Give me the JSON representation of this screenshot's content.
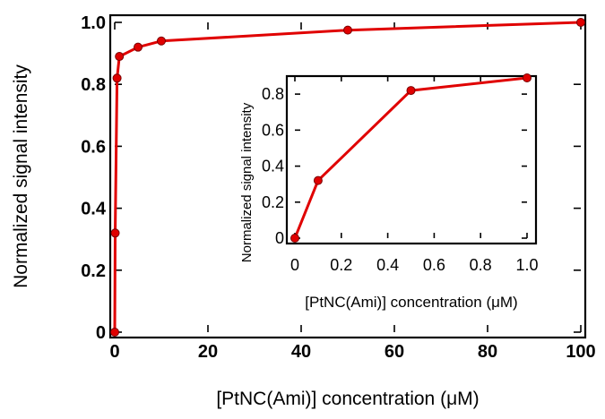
{
  "chart_data": [
    {
      "type": "line",
      "title": "",
      "xlabel": "[PtNC(Ami)] concentration (μM)",
      "ylabel": "Normalized signal intensity",
      "xlim": [
        0,
        100
      ],
      "ylim": [
        0,
        1.0
      ],
      "xticks": [
        0,
        20,
        40,
        60,
        80,
        100
      ],
      "yticks": [
        0,
        0.2,
        0.4,
        0.6,
        0.8,
        1.0
      ],
      "xtick_labels": [
        "0",
        "20",
        "40",
        "60",
        "80",
        "100"
      ],
      "ytick_labels": [
        "0",
        "0.2",
        "0.4",
        "0.6",
        "0.8",
        "1.0"
      ],
      "grid": false,
      "color": "#e00000",
      "x": [
        0,
        0.1,
        0.5,
        1,
        5,
        10,
        50,
        100
      ],
      "y": [
        0,
        0.32,
        0.82,
        0.89,
        0.92,
        0.94,
        0.975,
        1.0
      ]
    },
    {
      "type": "line",
      "title": "",
      "xlabel": "[PtNC(Ami)] concentration (μM)",
      "ylabel": "Normalized signal intensity",
      "xlim": [
        0,
        1.0
      ],
      "ylim": [
        0,
        0.9
      ],
      "xticks": [
        0,
        0.2,
        0.4,
        0.6,
        0.8,
        1.0
      ],
      "yticks": [
        0,
        0.2,
        0.4,
        0.6,
        0.8
      ],
      "xtick_labels": [
        "0",
        "0.2",
        "0.4",
        "0.6",
        "0.8",
        "1.0"
      ],
      "ytick_labels": [
        "0",
        "0.2",
        "0.4",
        "0.6",
        "0.8"
      ],
      "grid": false,
      "color": "#e00000",
      "x": [
        0,
        0.1,
        0.5,
        1.0
      ],
      "y": [
        0,
        0.32,
        0.82,
        0.89
      ]
    }
  ]
}
